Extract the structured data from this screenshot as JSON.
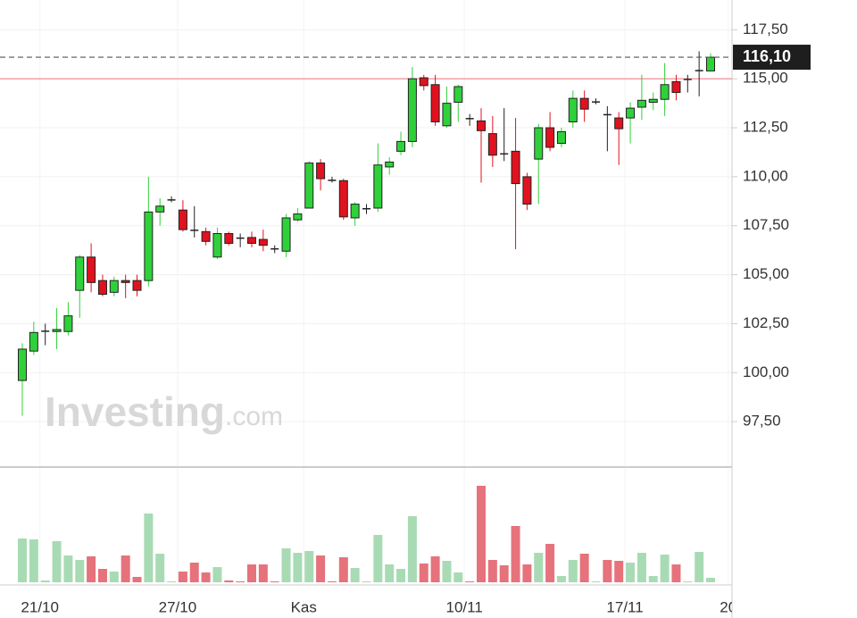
{
  "chart_data": {
    "type": "candlestick",
    "categories": [
      null,
      null,
      "21/10",
      null,
      null,
      null,
      null,
      null,
      null,
      null,
      null,
      null,
      null,
      null,
      "27/10",
      null,
      null,
      null,
      null,
      null,
      null,
      null,
      null,
      null,
      null,
      "Kas",
      null,
      null,
      null,
      null,
      null,
      null,
      null,
      null,
      null,
      null,
      null,
      null,
      null,
      "10/11",
      null,
      null,
      null,
      null,
      null,
      null,
      null,
      null,
      null,
      null,
      null,
      null,
      null,
      "17/11",
      null,
      null,
      null,
      null,
      null,
      null,
      null,
      null,
      "20"
    ],
    "open": [
      99.6,
      101.1,
      102.1,
      102.1,
      102.1,
      104.2,
      105.9,
      104.7,
      104.1,
      104.7,
      104.7,
      104.7,
      108.2,
      108.8,
      108.3,
      107.3,
      107.2,
      105.9,
      107.1,
      106.9,
      106.9,
      106.8,
      106.35,
      106.2,
      107.8,
      108.4,
      110.7,
      109.85,
      109.8,
      107.9,
      108.4,
      108.4,
      110.5,
      111.3,
      111.8,
      115.05,
      114.7,
      112.6,
      113.8,
      113.0,
      112.85,
      112.2,
      111.2,
      111.3,
      110.0,
      110.9,
      112.5,
      111.7,
      112.8,
      114.0,
      113.85,
      113.2,
      113.0,
      113.0,
      113.55,
      113.8,
      113.95,
      114.85,
      115.0,
      115.4,
      115.4,
      null,
      null
    ],
    "high": [
      101.5,
      102.6,
      102.5,
      103.3,
      103.6,
      106.0,
      106.6,
      105.0,
      104.9,
      105.0,
      105.0,
      110.0,
      108.9,
      109.0,
      108.8,
      108.5,
      107.4,
      107.4,
      107.2,
      107.1,
      107.2,
      107.3,
      106.5,
      108.1,
      108.4,
      110.8,
      110.9,
      110.0,
      109.9,
      108.7,
      108.6,
      111.7,
      111.0,
      112.3,
      115.6,
      115.2,
      115.2,
      114.6,
      114.7,
      113.2,
      113.5,
      113.1,
      113.5,
      113.0,
      110.2,
      112.7,
      113.3,
      112.5,
      114.4,
      114.4,
      114.0,
      113.6,
      113.3,
      113.8,
      115.2,
      114.3,
      115.8,
      115.2,
      115.2,
      116.4,
      116.3,
      null,
      null
    ],
    "low": [
      97.8,
      100.9,
      101.4,
      101.2,
      101.9,
      102.8,
      104.1,
      103.9,
      103.9,
      103.8,
      103.9,
      104.4,
      107.5,
      108.7,
      107.2,
      106.9,
      106.5,
      105.8,
      106.5,
      106.4,
      106.4,
      106.2,
      106.1,
      105.9,
      107.7,
      108.4,
      109.3,
      109.7,
      107.8,
      107.5,
      108.1,
      108.2,
      110.1,
      111.1,
      111.5,
      114.4,
      112.6,
      112.5,
      112.8,
      112.6,
      109.7,
      110.5,
      110.8,
      106.3,
      108.3,
      108.6,
      111.3,
      111.5,
      112.5,
      112.8,
      113.7,
      111.3,
      110.6,
      111.7,
      112.9,
      113.4,
      113.1,
      113.9,
      114.3,
      114.1,
      115.4,
      null,
      null
    ],
    "close": [
      101.2,
      102.05,
      102.15,
      102.2,
      102.9,
      105.9,
      104.6,
      104.0,
      104.7,
      104.6,
      104.2,
      108.2,
      108.5,
      108.85,
      107.3,
      107.25,
      106.7,
      107.1,
      106.6,
      106.85,
      106.6,
      106.5,
      106.3,
      107.9,
      108.1,
      110.7,
      109.9,
      109.8,
      107.95,
      108.6,
      108.4,
      110.6,
      110.75,
      111.8,
      115.0,
      114.65,
      112.8,
      113.75,
      114.6,
      112.95,
      112.35,
      111.1,
      111.15,
      109.65,
      108.6,
      112.5,
      111.5,
      112.3,
      114.0,
      113.45,
      113.85,
      113.15,
      112.45,
      113.5,
      113.9,
      113.95,
      114.7,
      114.3,
      115.0,
      115.45,
      116.1,
      null,
      null
    ],
    "volume": [
      49,
      48,
      2,
      46,
      30,
      25,
      29,
      15,
      12,
      30,
      6,
      77,
      32,
      1,
      12,
      22,
      11,
      17,
      2,
      1,
      20,
      20,
      1,
      38,
      33,
      35,
      30,
      1,
      28,
      16,
      1,
      53,
      20,
      15,
      74,
      21,
      29,
      24,
      11,
      1,
      108,
      25,
      19,
      63,
      20,
      33,
      43,
      7,
      25,
      32,
      1,
      25,
      24,
      22,
      33,
      7,
      31,
      20,
      1,
      34,
      5,
      null,
      null
    ],
    "up_color": "#2fd13a",
    "down_color": "#e0121f",
    "volume_up_color": "#a8dbb4",
    "volume_down_color": "#e6727b",
    "ylim": [
      95.5,
      119.02
    ],
    "yticks": [
      {
        "value": 97.5,
        "label": "97,50"
      },
      {
        "value": 100,
        "label": "100,00"
      },
      {
        "value": 102.5,
        "label": "102,50"
      },
      {
        "value": 105,
        "label": "105,00"
      },
      {
        "value": 107.5,
        "label": "107,50"
      },
      {
        "value": 110,
        "label": "110,00"
      },
      {
        "value": 112.5,
        "label": "112,50"
      },
      {
        "value": 115,
        "label": "115,00"
      },
      {
        "value": 117.5,
        "label": "117,50"
      }
    ],
    "volume_ylim": [
      0,
      127
    ],
    "last_price": {
      "value": 116.1,
      "label": "116,10"
    },
    "reference_line": 115,
    "grid": true,
    "watermark": "Investing",
    "watermark_suffix": ".com"
  }
}
